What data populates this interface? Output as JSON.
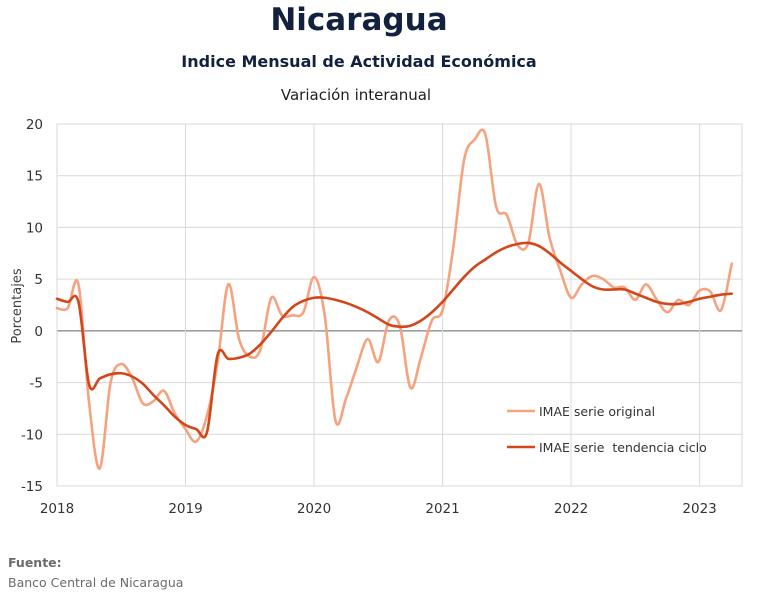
{
  "header": {
    "title": "Nicaragua",
    "subtitle": "Indice Mensual de  Actividad Económica",
    "subtitle2": "Variación interanual"
  },
  "footer": {
    "source_label": "Fuente:",
    "source_value": "Banco Central de Nicaragua"
  },
  "colors": {
    "original": "#f5a37f",
    "trend": "#d2461a",
    "grid": "#d9d9d9",
    "zero_line": "#808080",
    "title": "#12213f"
  },
  "chart_data": {
    "type": "line",
    "ylabel": "Porcentajes",
    "xlabel": "",
    "ylim": [
      -15,
      20
    ],
    "xlim": [
      2018.0,
      2023.33
    ],
    "yticks": [
      -15,
      -10,
      -5,
      0,
      5,
      10,
      15,
      20
    ],
    "yticklabels": [
      "-15",
      "-10",
      "-5",
      "0",
      "5",
      "10",
      "15",
      "20"
    ],
    "xticks": [
      2018,
      2019,
      2020,
      2021,
      2022,
      2023
    ],
    "xticklabels": [
      "2018",
      "2019",
      "2020",
      "2021",
      "2022",
      "2023"
    ],
    "grid": true,
    "legend": "bottom-right",
    "series": [
      {
        "name": "IMAE serie original",
        "color": "#f5a37f",
        "x": [
          2018.0,
          2018.083,
          2018.167,
          2018.25,
          2018.333,
          2018.417,
          2018.5,
          2018.583,
          2018.667,
          2018.75,
          2018.833,
          2018.917,
          2019.0,
          2019.083,
          2019.167,
          2019.25,
          2019.333,
          2019.417,
          2019.5,
          2019.583,
          2019.667,
          2019.75,
          2019.833,
          2019.917,
          2020.0,
          2020.083,
          2020.167,
          2020.25,
          2020.333,
          2020.417,
          2020.5,
          2020.583,
          2020.667,
          2020.75,
          2020.833,
          2020.917,
          2021.0,
          2021.083,
          2021.167,
          2021.25,
          2021.333,
          2021.417,
          2021.5,
          2021.583,
          2021.667,
          2021.75,
          2021.833,
          2021.917,
          2022.0,
          2022.083,
          2022.167,
          2022.25,
          2022.333,
          2022.417,
          2022.5,
          2022.583,
          2022.667,
          2022.75,
          2022.833,
          2022.917,
          2023.0,
          2023.083,
          2023.167,
          2023.25
        ],
        "y": [
          2.2,
          2.2,
          4.5,
          -7.0,
          -13.3,
          -5.0,
          -3.2,
          -4.5,
          -7.0,
          -6.8,
          -5.8,
          -8.0,
          -9.5,
          -10.7,
          -8.2,
          -3.0,
          4.5,
          -0.8,
          -2.5,
          -1.8,
          3.2,
          1.5,
          1.5,
          1.8,
          5.2,
          1.5,
          -8.7,
          -6.5,
          -3.5,
          -0.8,
          -3.0,
          1.0,
          0.5,
          -5.5,
          -2.5,
          1.0,
          2.0,
          8.0,
          16.5,
          18.5,
          19.0,
          12.0,
          11.2,
          8.3,
          8.5,
          14.2,
          9.0,
          5.8,
          3.2,
          4.5,
          5.3,
          5.0,
          4.2,
          4.2,
          3.0,
          4.5,
          3.0,
          1.8,
          3.0,
          2.5,
          3.9,
          3.8,
          2.0,
          6.5
        ]
      },
      {
        "name": "IMAE serie  tendencia ciclo",
        "color": "#d2461a",
        "x": [
          2018.0,
          2018.083,
          2018.167,
          2018.25,
          2018.333,
          2018.417,
          2018.5,
          2018.583,
          2018.667,
          2018.75,
          2018.833,
          2018.917,
          2019.0,
          2019.083,
          2019.167,
          2019.25,
          2019.333,
          2019.417,
          2019.5,
          2019.583,
          2019.667,
          2019.75,
          2019.833,
          2019.917,
          2020.0,
          2020.083,
          2020.167,
          2020.25,
          2020.333,
          2020.417,
          2020.5,
          2020.583,
          2020.667,
          2020.75,
          2020.833,
          2020.917,
          2021.0,
          2021.083,
          2021.167,
          2021.25,
          2021.333,
          2021.417,
          2021.5,
          2021.583,
          2021.667,
          2021.75,
          2021.833,
          2021.917,
          2022.0,
          2022.083,
          2022.167,
          2022.25,
          2022.333,
          2022.417,
          2022.5,
          2022.583,
          2022.667,
          2022.75,
          2022.833,
          2022.917,
          2023.0,
          2023.083,
          2023.167,
          2023.25
        ],
        "y": [
          3.1,
          2.8,
          2.8,
          -5.2,
          -4.6,
          -4.2,
          -4.1,
          -4.4,
          -5.1,
          -6.2,
          -7.2,
          -8.3,
          -9.1,
          -9.5,
          -9.8,
          -2.3,
          -2.7,
          -2.6,
          -2.2,
          -1.3,
          -0.1,
          1.2,
          2.3,
          2.9,
          3.2,
          3.2,
          3.0,
          2.7,
          2.3,
          1.8,
          1.2,
          0.6,
          0.4,
          0.5,
          1.0,
          1.8,
          2.8,
          4.0,
          5.2,
          6.2,
          6.9,
          7.6,
          8.1,
          8.4,
          8.5,
          8.2,
          7.5,
          6.6,
          5.8,
          5.0,
          4.3,
          4.0,
          4.0,
          4.0,
          3.6,
          3.2,
          2.8,
          2.6,
          2.6,
          2.8,
          3.1,
          3.3,
          3.5,
          3.6
        ]
      }
    ]
  }
}
